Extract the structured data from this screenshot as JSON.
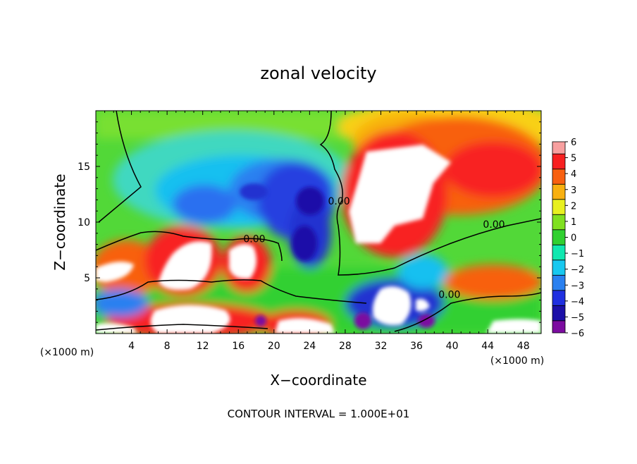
{
  "chart_data": {
    "type": "heatmap",
    "title": "zonal velocity",
    "xlabel": "X−coordinate",
    "ylabel": "Z−coordinate",
    "x_unit_left": "(×1000 m)",
    "x_unit_right": "(×1000 m)",
    "xlim": [
      0,
      50
    ],
    "ylim": [
      0,
      20
    ],
    "x_ticks": [
      4,
      8,
      12,
      16,
      20,
      24,
      28,
      32,
      36,
      40,
      44,
      48
    ],
    "y_ticks": [
      5,
      10,
      15
    ],
    "contour_labels": [
      {
        "text": "0.00",
        "x": 17.8,
        "z": 8.5
      },
      {
        "text": "0.00",
        "x": 27.3,
        "z": 11.9
      },
      {
        "text": "0.00",
        "x": 44.7,
        "z": 9.8
      },
      {
        "text": "0.00",
        "x": 39.7,
        "z": 3.5
      }
    ],
    "colorbar": {
      "levels": [
        -6,
        -5,
        -4,
        -3,
        -2,
        -1,
        0,
        1,
        2,
        3,
        4,
        5,
        6
      ],
      "tick_labels": [
        "6",
        "5",
        "4",
        "3",
        "2",
        "1",
        "0",
        "−1",
        "−2",
        "−3",
        "−4",
        "−5",
        "−6"
      ],
      "colors": [
        "#7c0ca0",
        "#1c10a8",
        "#2030e0",
        "#2a80f0",
        "#18c8f0",
        "#10e8b0",
        "#30d030",
        "#80e020",
        "#e8f020",
        "#f8b010",
        "#f86010",
        "#f82020",
        "#f8a0a0"
      ]
    },
    "footer": "CONTOUR INTERVAL = 1.000E+01"
  }
}
